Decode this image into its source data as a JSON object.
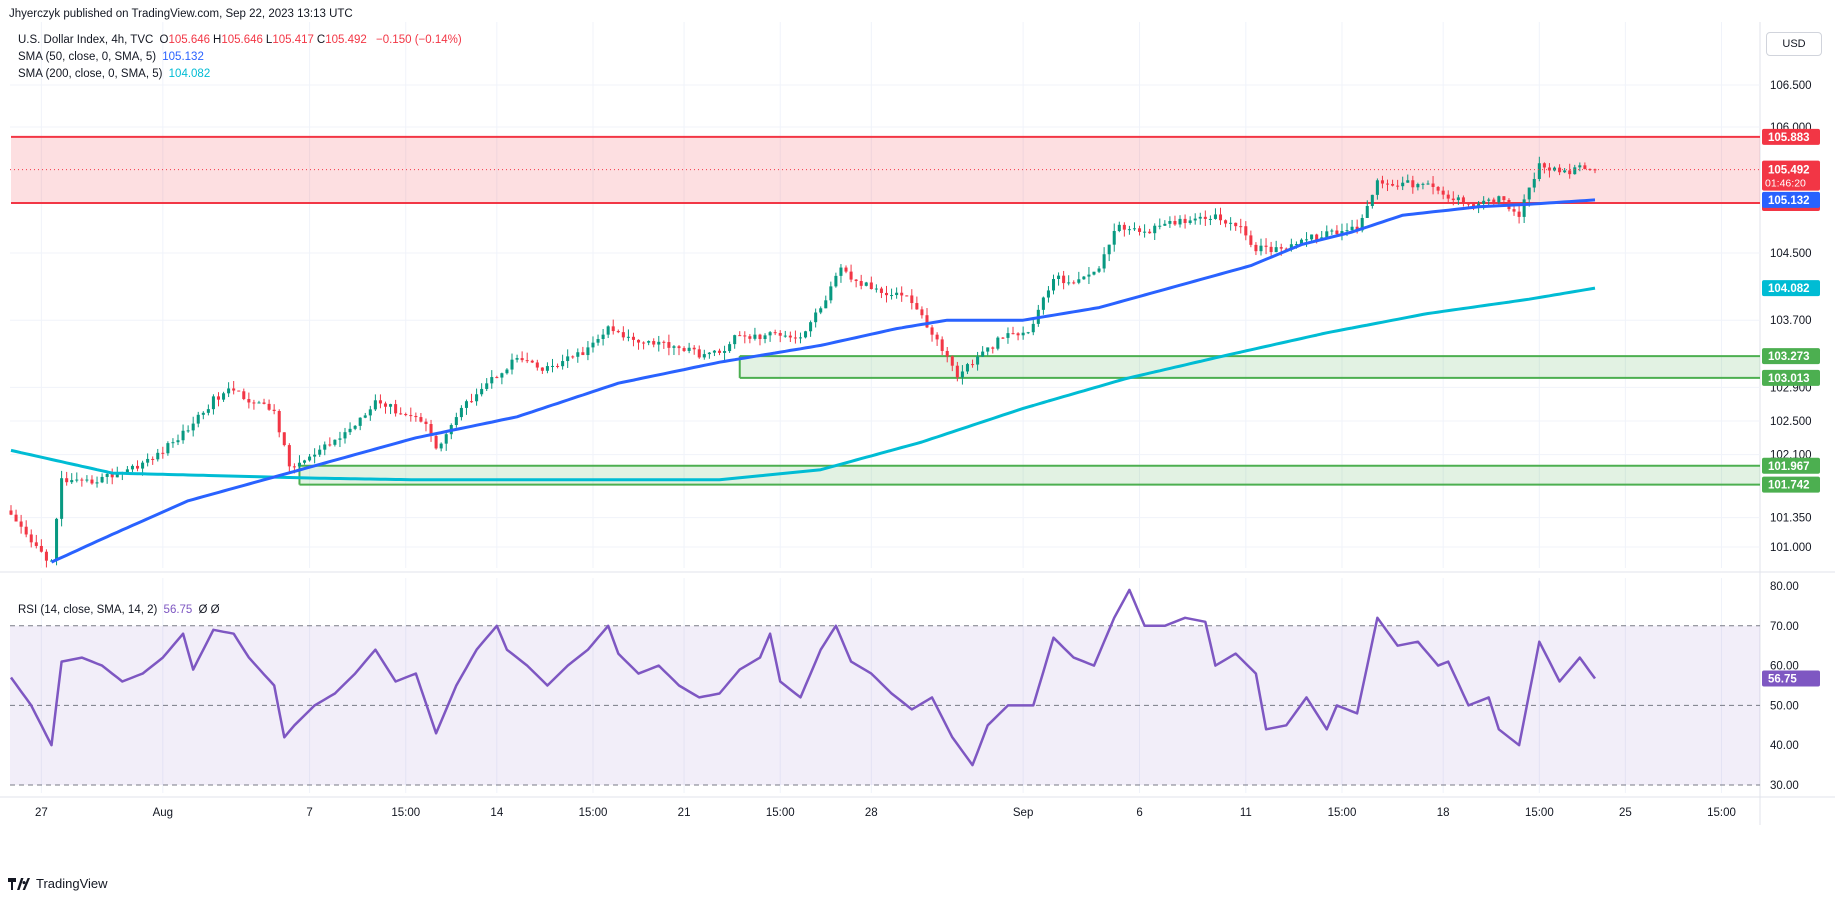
{
  "publisher": "Jhyerczyk published on TradingView.com, Sep 22, 2023 13:13 UTC",
  "currency_button": "USD",
  "brand": "TradingView",
  "legend": {
    "symbol": "U.S. Dollar Index, 4h, TVC",
    "ohlc": [
      {
        "k": "O",
        "v": "105.646"
      },
      {
        "k": "H",
        "v": "105.646"
      },
      {
        "k": "L",
        "v": "105.417"
      },
      {
        "k": "C",
        "v": "105.492"
      }
    ],
    "change": "−0.150 (−0.14%)",
    "sma50_label": "SMA (50, close, 0, SMA, 5)",
    "sma50_value": "105.132",
    "sma200_label": "SMA (200, close, 0, SMA, 5)",
    "sma200_value": "104.082",
    "rsi_label": "RSI (14, close, SMA, 14, 2)",
    "rsi_value": "56.75",
    "rsi_extra": "Ø  Ø"
  },
  "colors": {
    "up": "#089981",
    "down": "#f23645",
    "sma50": "#2962ff",
    "sma200": "#00bcd4",
    "rsi": "#7e57c2",
    "resistance": "#f23645",
    "support": "#4caf50"
  },
  "chart_data": {
    "type": "candlestick",
    "price_axis": {
      "range": [
        100.75,
        107.25
      ],
      "ticks": [
        "106.500",
        "106.000",
        "104.500",
        "103.700",
        "102.900",
        "102.500",
        "102.100",
        "101.350",
        "101.000"
      ]
    },
    "x_axis": {
      "ticks": [
        "27",
        "Aug",
        "7",
        "15:00",
        "14",
        "15:00",
        "21",
        "15:00",
        "28",
        "Sep",
        "6",
        "11",
        "15:00",
        "18",
        "15:00",
        "25",
        "15:00"
      ],
      "tick_positions_bars": [
        6,
        30,
        59,
        78,
        96,
        115,
        133,
        152,
        170,
        200,
        223,
        244,
        263,
        283,
        302,
        319,
        338
      ]
    },
    "last_bar_index": 313,
    "close_waypoints": [
      [
        0,
        101.35
      ],
      [
        4,
        101.05
      ],
      [
        8,
        100.82
      ],
      [
        10,
        101.8
      ],
      [
        14,
        101.75
      ],
      [
        18,
        101.82
      ],
      [
        22,
        101.9
      ],
      [
        28,
        102.05
      ],
      [
        34,
        102.35
      ],
      [
        40,
        102.75
      ],
      [
        44,
        102.88
      ],
      [
        48,
        102.72
      ],
      [
        52,
        102.62
      ],
      [
        55,
        101.95
      ],
      [
        59,
        102.05
      ],
      [
        63,
        102.22
      ],
      [
        67,
        102.4
      ],
      [
        72,
        102.75
      ],
      [
        77,
        102.6
      ],
      [
        82,
        102.5
      ],
      [
        84,
        102.15
      ],
      [
        88,
        102.55
      ],
      [
        92,
        102.85
      ],
      [
        96,
        103.05
      ],
      [
        100,
        103.25
      ],
      [
        105,
        103.1
      ],
      [
        109,
        103.2
      ],
      [
        114,
        103.35
      ],
      [
        118,
        103.6
      ],
      [
        121,
        103.5
      ],
      [
        126,
        103.45
      ],
      [
        131,
        103.4
      ],
      [
        136,
        103.3
      ],
      [
        140,
        103.3
      ],
      [
        143,
        103.5
      ],
      [
        148,
        103.5
      ],
      [
        152,
        103.55
      ],
      [
        156,
        103.5
      ],
      [
        160,
        103.85
      ],
      [
        164,
        104.3
      ],
      [
        167,
        104.15
      ],
      [
        172,
        104.05
      ],
      [
        177,
        104.0
      ],
      [
        182,
        103.55
      ],
      [
        187,
        103.05
      ],
      [
        191,
        103.25
      ],
      [
        196,
        103.5
      ],
      [
        201,
        103.55
      ],
      [
        206,
        104.2
      ],
      [
        211,
        104.15
      ],
      [
        215,
        104.35
      ],
      [
        219,
        104.85
      ],
      [
        222,
        104.75
      ],
      [
        227,
        104.8
      ],
      [
        232,
        104.9
      ],
      [
        237,
        104.95
      ],
      [
        242,
        104.85
      ],
      [
        246,
        104.55
      ],
      [
        250,
        104.55
      ],
      [
        255,
        104.65
      ],
      [
        260,
        104.72
      ],
      [
        266,
        104.8
      ],
      [
        270,
        105.35
      ],
      [
        275,
        105.33
      ],
      [
        280,
        105.3
      ],
      [
        284,
        105.15
      ],
      [
        289,
        105.1
      ],
      [
        294,
        105.15
      ],
      [
        298,
        104.95
      ],
      [
        302,
        105.55
      ],
      [
        306,
        105.45
      ],
      [
        310,
        105.5
      ],
      [
        313,
        105.49
      ]
    ],
    "sma50_waypoints": [
      [
        8,
        100.82
      ],
      [
        20,
        101.15
      ],
      [
        35,
        101.55
      ],
      [
        50,
        101.8
      ],
      [
        65,
        102.05
      ],
      [
        80,
        102.3
      ],
      [
        100,
        102.55
      ],
      [
        120,
        102.95
      ],
      [
        140,
        103.2
      ],
      [
        160,
        103.4
      ],
      [
        175,
        103.6
      ],
      [
        185,
        103.7
      ],
      [
        200,
        103.7
      ],
      [
        215,
        103.85
      ],
      [
        230,
        104.1
      ],
      [
        245,
        104.35
      ],
      [
        255,
        104.6
      ],
      [
        265,
        104.75
      ],
      [
        275,
        104.95
      ],
      [
        290,
        105.05
      ],
      [
        300,
        105.08
      ],
      [
        313,
        105.132
      ]
    ],
    "sma200_waypoints": [
      [
        0,
        102.15
      ],
      [
        20,
        101.88
      ],
      [
        40,
        101.85
      ],
      [
        60,
        101.82
      ],
      [
        80,
        101.8
      ],
      [
        110,
        101.8
      ],
      [
        140,
        101.8
      ],
      [
        160,
        101.92
      ],
      [
        180,
        102.25
      ],
      [
        200,
        102.65
      ],
      [
        220,
        103.0
      ],
      [
        240,
        103.28
      ],
      [
        260,
        103.55
      ],
      [
        280,
        103.78
      ],
      [
        300,
        103.95
      ],
      [
        313,
        104.082
      ]
    ],
    "zones": [
      {
        "name": "resistance",
        "top": 105.883,
        "bottom": 105.095,
        "from_bar": 0,
        "top_label": "105.883",
        "bottom_label": "105.095"
      },
      {
        "name": "support-upper",
        "top": 103.273,
        "bottom": 103.013,
        "from_bar": 144,
        "top_label": "103.273",
        "bottom_label": "103.013"
      },
      {
        "name": "support-lower",
        "top": 101.967,
        "bottom": 101.742,
        "from_bar": 57,
        "top_label": "101.967",
        "bottom_label": "101.742"
      }
    ],
    "price_labels": {
      "last": "105.492",
      "countdown": "01:46:20",
      "sma50": "105.132",
      "sma200": "104.082"
    },
    "rsi": {
      "range": [
        28,
        82
      ],
      "ticks": [
        "80.00",
        "70.00",
        "60.00",
        "50.00",
        "40.00",
        "30.00"
      ],
      "band": [
        30,
        70
      ],
      "mid": 50,
      "last": 56.75,
      "waypoints": [
        [
          0,
          57
        ],
        [
          4,
          50
        ],
        [
          8,
          40
        ],
        [
          10,
          61
        ],
        [
          14,
          62
        ],
        [
          18,
          60
        ],
        [
          22,
          56
        ],
        [
          26,
          58
        ],
        [
          30,
          62
        ],
        [
          34,
          68
        ],
        [
          36,
          59
        ],
        [
          40,
          69
        ],
        [
          44,
          68
        ],
        [
          47,
          62
        ],
        [
          52,
          55
        ],
        [
          54,
          42
        ],
        [
          56,
          45
        ],
        [
          60,
          50
        ],
        [
          64,
          53
        ],
        [
          68,
          58
        ],
        [
          72,
          64
        ],
        [
          76,
          56
        ],
        [
          80,
          58
        ],
        [
          84,
          43
        ],
        [
          88,
          55
        ],
        [
          92,
          64
        ],
        [
          96,
          70
        ],
        [
          98,
          64
        ],
        [
          102,
          60
        ],
        [
          106,
          55
        ],
        [
          110,
          60
        ],
        [
          114,
          64
        ],
        [
          118,
          70
        ],
        [
          120,
          63
        ],
        [
          124,
          58
        ],
        [
          128,
          60
        ],
        [
          132,
          55
        ],
        [
          136,
          52
        ],
        [
          140,
          53
        ],
        [
          144,
          59
        ],
        [
          148,
          62
        ],
        [
          150,
          68
        ],
        [
          152,
          56
        ],
        [
          156,
          52
        ],
        [
          160,
          64
        ],
        [
          163,
          70
        ],
        [
          166,
          61
        ],
        [
          170,
          58
        ],
        [
          174,
          53
        ],
        [
          178,
          49
        ],
        [
          182,
          52
        ],
        [
          186,
          42
        ],
        [
          190,
          35
        ],
        [
          193,
          45
        ],
        [
          197,
          50
        ],
        [
          202,
          50
        ],
        [
          206,
          67
        ],
        [
          210,
          62
        ],
        [
          214,
          60
        ],
        [
          218,
          72
        ],
        [
          221,
          79
        ],
        [
          224,
          70
        ],
        [
          228,
          70
        ],
        [
          232,
          72
        ],
        [
          236,
          71
        ],
        [
          238,
          60
        ],
        [
          242,
          63
        ],
        [
          246,
          58
        ],
        [
          248,
          44
        ],
        [
          252,
          45
        ],
        [
          256,
          52
        ],
        [
          260,
          44
        ],
        [
          262,
          50
        ],
        [
          266,
          48
        ],
        [
          270,
          72
        ],
        [
          274,
          65
        ],
        [
          278,
          66
        ],
        [
          282,
          60
        ],
        [
          284,
          61
        ],
        [
          288,
          50
        ],
        [
          292,
          52
        ],
        [
          294,
          44
        ],
        [
          298,
          40
        ],
        [
          302,
          66
        ],
        [
          306,
          56
        ],
        [
          310,
          62
        ],
        [
          313,
          56.75
        ]
      ]
    }
  }
}
